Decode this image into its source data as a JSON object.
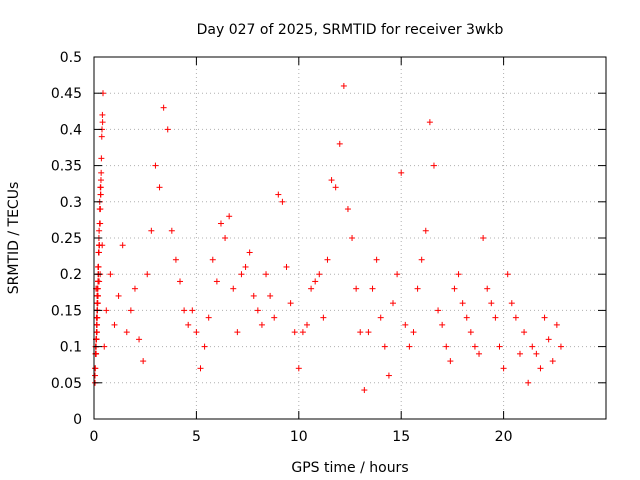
{
  "chart_data": {
    "type": "scatter",
    "title": "Day 027 of 2025, SRMTID for receiver 3wkb",
    "xlabel": "GPS time / hours",
    "ylabel": "SRMTID / TECUs",
    "xlim": [
      0,
      25
    ],
    "ylim": [
      0,
      0.5
    ],
    "xticks": [
      0,
      5,
      10,
      15,
      20
    ],
    "xtick_labels": [
      "0",
      "5",
      "10",
      "15",
      "20"
    ],
    "yticks": [
      0,
      0.05,
      0.1,
      0.15,
      0.2,
      0.25,
      0.3,
      0.35,
      0.4,
      0.45,
      0.5
    ],
    "ytick_labels": [
      "0",
      "0.05",
      "0.1",
      "0.15",
      "0.2",
      "0.25",
      "0.3",
      "0.35",
      "0.4",
      "0.45",
      "0.5"
    ],
    "grid": true,
    "marker": "+",
    "color": "#ff0000",
    "series": [
      {
        "name": "SRMTID",
        "x": [
          0.1,
          0.2,
          0.3,
          0.4,
          0.5,
          0.6,
          0.8,
          1.0,
          1.2,
          1.4,
          1.6,
          1.8,
          2.0,
          2.2,
          2.4,
          2.6,
          2.8,
          3.0,
          3.2,
          3.4,
          3.6,
          3.8,
          4.0,
          4.2,
          4.4,
          4.6,
          4.8,
          5.0,
          5.2,
          5.4,
          5.6,
          5.8,
          6.0,
          6.2,
          6.4,
          6.6,
          6.8,
          7.0,
          7.2,
          7.4,
          7.6,
          7.8,
          8.0,
          8.2,
          8.4,
          8.6,
          8.8,
          9.0,
          9.2,
          9.4,
          9.6,
          9.8,
          10.0,
          10.2,
          10.4,
          10.6,
          10.8,
          11.0,
          11.2,
          11.4,
          11.6,
          11.8,
          12.0,
          12.2,
          12.4,
          12.6,
          12.8,
          13.0,
          13.2,
          13.4,
          13.6,
          13.8,
          14.0,
          14.2,
          14.4,
          14.6,
          14.8,
          15.0,
          15.2,
          15.4,
          15.6,
          15.8,
          16.0,
          16.2,
          16.4,
          16.6,
          16.8,
          17.0,
          17.2,
          17.4,
          17.6,
          17.8,
          18.0,
          18.2,
          18.4,
          18.6,
          18.8,
          19.0,
          19.2,
          19.4,
          19.6,
          19.8,
          20.0,
          20.2,
          20.4,
          20.6,
          20.8,
          21.0,
          21.2,
          21.4,
          21.6,
          21.8,
          22.0,
          22.2,
          22.4,
          22.6,
          22.8,
          0.15,
          0.25,
          0.3,
          0.22,
          0.12,
          0.18,
          0.1,
          0.14,
          0.2,
          0.16,
          0.09,
          0.13,
          0.22,
          0.19,
          0.05,
          0.17,
          0.28,
          0.33,
          0.36,
          0.42,
          0.41,
          0.3,
          0.2,
          0.25,
          0.18,
          0.15,
          0.14,
          0.1,
          0.08,
          0.12,
          0.16,
          0.2,
          0.22,
          0.25,
          0.28,
          0.3,
          0.2,
          0.15,
          0.18,
          0.24,
          0.26,
          0.2,
          0.17,
          0.14,
          0.22,
          0.19,
          0.16,
          0.3,
          0.31,
          0.24,
          0.18,
          0.14,
          0.06,
          0.1,
          0.15,
          0.2,
          0.22,
          0.18,
          0.16,
          0.24,
          0.3,
          0.35,
          0.38,
          0.44,
          0.32,
          0.28,
          0.2,
          0.1,
          0.05,
          0.14,
          0.2,
          0.25,
          0.16,
          0.12,
          0.08,
          0.18,
          0.22,
          0.34,
          0.15,
          0.12,
          0.1,
          0.2,
          0.24,
          0.28,
          0.39,
          0.33,
          0.17,
          0.15,
          0.12,
          0.1,
          0.2,
          0.22,
          0.18,
          0.16,
          0.14,
          0.12,
          0.1,
          0.24,
          0.2,
          0.18,
          0.15,
          0.12,
          0.08,
          0.22,
          0.18,
          0.16,
          0.1,
          0.14,
          0.06,
          0.12,
          0.1,
          0.08,
          0.15,
          0.12,
          0.1,
          0.14,
          0.12
        ],
        "y": [
          0.18,
          0.2,
          0.29,
          0.24,
          0.1,
          0.15,
          0.2,
          0.13,
          0.17,
          0.24,
          0.12,
          0.15,
          0.18,
          0.11,
          0.08,
          0.2,
          0.26,
          0.35,
          0.32,
          0.43,
          0.4,
          0.26,
          0.22,
          0.19,
          0.15,
          0.13,
          0.15,
          0.12,
          0.07,
          0.1,
          0.14,
          0.22,
          0.19,
          0.27,
          0.25,
          0.28,
          0.18,
          0.12,
          0.2,
          0.21,
          0.23,
          0.17,
          0.15,
          0.13,
          0.2,
          0.17,
          0.14,
          0.31,
          0.3,
          0.21,
          0.16,
          0.12,
          0.07,
          0.12,
          0.13,
          0.18,
          0.19,
          0.2,
          0.14,
          0.22,
          0.33,
          0.32,
          0.38,
          0.46,
          0.29,
          0.25,
          0.18,
          0.12,
          0.04,
          0.12,
          0.18,
          0.22,
          0.14,
          0.1,
          0.06,
          0.16,
          0.2,
          0.34,
          0.13,
          0.1,
          0.12,
          0.18,
          0.22,
          0.26,
          0.41,
          0.35,
          0.15,
          0.13,
          0.1,
          0.08,
          0.18,
          0.2,
          0.16,
          0.14,
          0.12,
          0.1,
          0.09,
          0.25,
          0.18,
          0.16,
          0.14,
          0.1,
          0.07,
          0.2,
          0.16,
          0.14,
          0.09,
          0.12,
          0.05,
          0.1,
          0.09,
          0.07,
          0.14,
          0.11,
          0.08,
          0.13,
          0.1,
          0.17,
          0.19,
          0.2,
          0.23,
          0.14,
          0.16,
          0.11,
          0.12,
          0.19,
          0.18,
          0.1,
          0.12,
          0.2,
          0.17,
          0.05,
          0.15,
          0.3,
          0.31,
          0.36,
          0.41,
          0.42,
          0.29,
          0.19,
          0.24,
          0.17,
          0.14,
          0.12,
          0.09,
          0.1,
          0.11,
          0.18,
          0.21,
          0.21,
          0.26,
          0.29,
          0.27,
          0.19,
          0.14,
          0.16,
          0.25,
          0.24,
          0.19,
          0.16,
          0.13,
          0.21,
          0.18,
          0.15,
          0.29,
          0.32,
          0.23,
          0.17,
          0.13,
          0.07,
          0.11,
          0.16,
          0.21,
          0.21,
          0.17,
          0.15,
          0.23,
          0.29,
          0.34,
          0.39,
          0.45,
          0.31,
          0.27,
          0.19,
          0.11,
          0.06,
          0.13,
          0.19,
          0.24,
          0.15,
          0.11,
          0.09,
          0.17,
          0.21,
          0.33,
          0.14,
          0.11,
          0.11,
          0.19,
          0.23,
          0.27,
          0.4,
          0.32,
          0.16,
          0.14,
          0.11,
          0.09,
          0.19,
          0.21,
          0.17,
          0.15,
          0.13,
          0.11,
          0.1,
          0.23,
          0.19,
          0.17,
          0.15,
          0.11,
          0.09,
          0.21,
          0.17,
          0.15,
          0.1,
          0.13,
          0.07,
          0.11,
          0.1,
          0.09,
          0.14,
          0.12,
          0.09,
          0.13,
          0.11
        ]
      }
    ]
  }
}
